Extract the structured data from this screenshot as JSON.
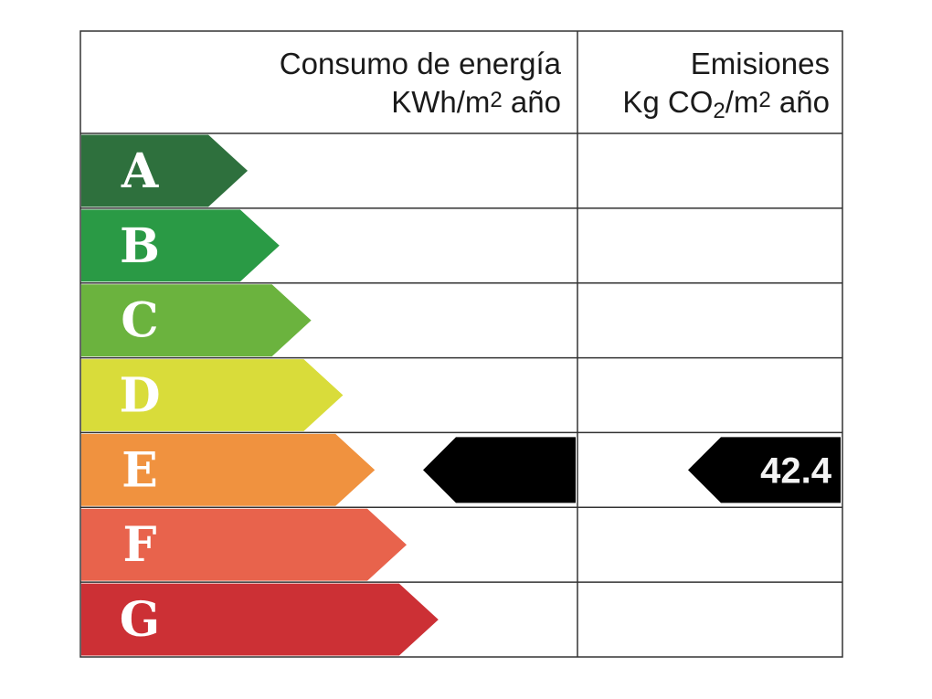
{
  "header": {
    "energy_line1": "Consumo de energía",
    "energy_unit_prefix": "KWh/m",
    "energy_unit_sup": "2",
    "energy_unit_suffix": " año",
    "emissions_line1": "Emisiones",
    "emissions_unit_prefix": "Kg CO",
    "emissions_unit_sub": "2",
    "emissions_unit_mid": "/m",
    "emissions_unit_sup": "2",
    "emissions_unit_suffix": " año"
  },
  "ratings": [
    {
      "letter": "A",
      "color": "#2e703d"
    },
    {
      "letter": "B",
      "color": "#2a9a45"
    },
    {
      "letter": "C",
      "color": "#6bb33e"
    },
    {
      "letter": "D",
      "color": "#d9dc3a"
    },
    {
      "letter": "E",
      "color": "#f0923f"
    },
    {
      "letter": "F",
      "color": "#e8634c"
    },
    {
      "letter": "G",
      "color": "#cc3035"
    }
  ],
  "energy_indicator": {
    "rating": "E",
    "value": ""
  },
  "emissions_indicator": {
    "rating": "E",
    "value": "42.4"
  }
}
